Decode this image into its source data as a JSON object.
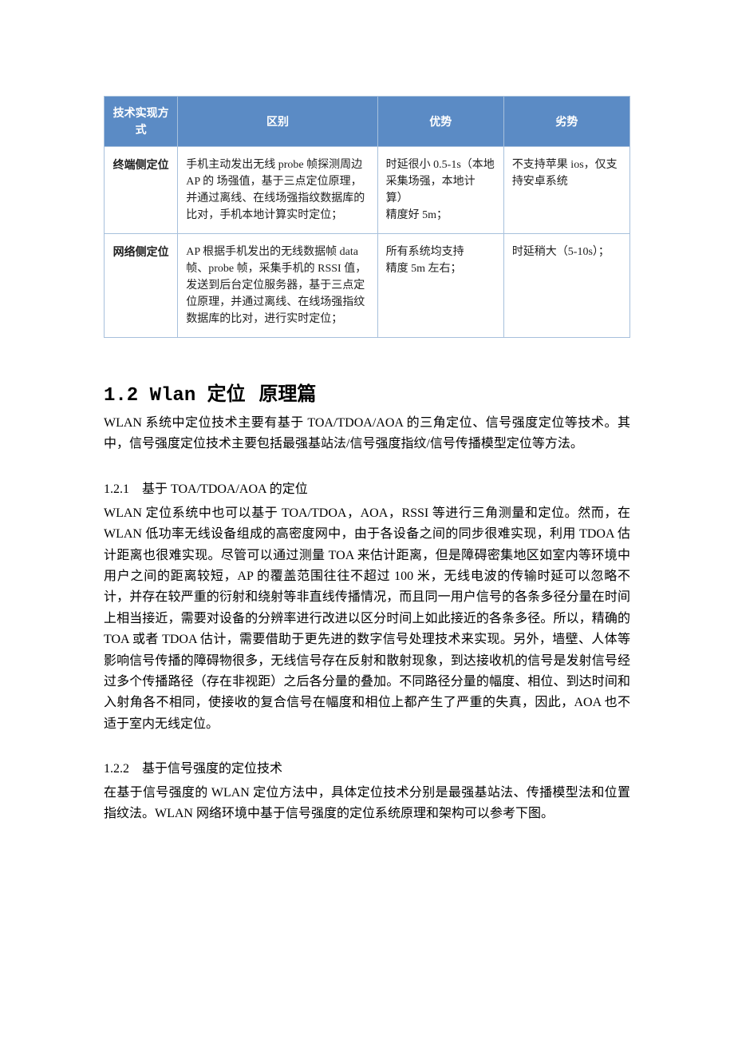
{
  "table": {
    "header_bg": "#5b8bc5",
    "header_fg": "#ffffff",
    "border_color": "#a7c0dc",
    "columns": [
      {
        "label": "技术实现方式",
        "class": "col-1"
      },
      {
        "label": "区别",
        "class": "col-2"
      },
      {
        "label": "优势",
        "class": "col-3"
      },
      {
        "label": "劣势",
        "class": "col-4"
      }
    ],
    "rows": [
      {
        "label": "终端侧定位",
        "diff": "手机主动发出无线 probe 帧探测周边 AP 的 场强值，基于三点定位原理，并通过离线、在线场强指纹数据库的比对，手机本地计算实时定位；",
        "adv": "时延很小 0.5-1s（本地采集场强，本地计算）\n精度好 5m；",
        "dis": "不支持苹果 ios，仅支持安卓系统"
      },
      {
        "label": "网络侧定位",
        "diff": "AP 根据手机发出的无线数据帧 data 帧、probe 帧，采集手机的 RSSI 值，发送到后台定位服务器，基于三点定位原理，并通过离线、在线场强指纹数据库的比对，进行实时定位；",
        "adv": "所有系统均支持\n精度 5m 左右；",
        "dis": "时延稍大（5-10s）；"
      }
    ]
  },
  "section": {
    "number": "1.2",
    "title_a": "Wlan 定位",
    "title_b": "原理篇",
    "intro": "WLAN 系统中定位技术主要有基于 TOA/TDOA/AOA 的三角定位、信号强度定位等技术。其中，信号强度定位技术主要包括最强基站法/信号强度指纹/信号传播模型定位等方法。"
  },
  "sub1": {
    "heading": "1.2.1　基于 TOA/TDOA/AOA 的定位",
    "body": "WLAN 定位系统中也可以基于 TOA/TDOA，AOA，RSSI 等进行三角测量和定位。然而，在 WLAN 低功率无线设备组成的高密度网中，由于各设备之间的同步很难实现，利用 TDOA 估计距离也很难实现。尽管可以通过测量 TOA 来估计距离，但是障碍密集地区如室内等环境中用户之间的距离较短，AP 的覆盖范围往往不超过 100 米，无线电波的传输时延可以忽略不计，并存在较严重的衍射和绕射等非直线传播情况，而且同一用户信号的各条多径分量在时间上相当接近，需要对设备的分辨率进行改进以区分时间上如此接近的各条多径。所以，精确的 TOA 或者 TDOA 估计，需要借助于更先进的数字信号处理技术来实现。另外，墙壁、人体等影响信号传播的障碍物很多，无线信号存在反射和散射现象，到达接收机的信号是发射信号经过多个传播路径（存在非视距）之后各分量的叠加。不同路径分量的幅度、相位、到达时间和入射角各不相同，使接收的复合信号在幅度和相位上都产生了严重的失真，因此，AOA 也不适于室内无线定位。"
  },
  "sub2": {
    "heading": "1.2.2　基于信号强度的定位技术",
    "body": "在基于信号强度的 WLAN 定位方法中，具体定位技术分别是最强基站法、传播模型法和位置指纹法。WLAN 网络环境中基于信号强度的定位系统原理和架构可以参考下图。"
  }
}
